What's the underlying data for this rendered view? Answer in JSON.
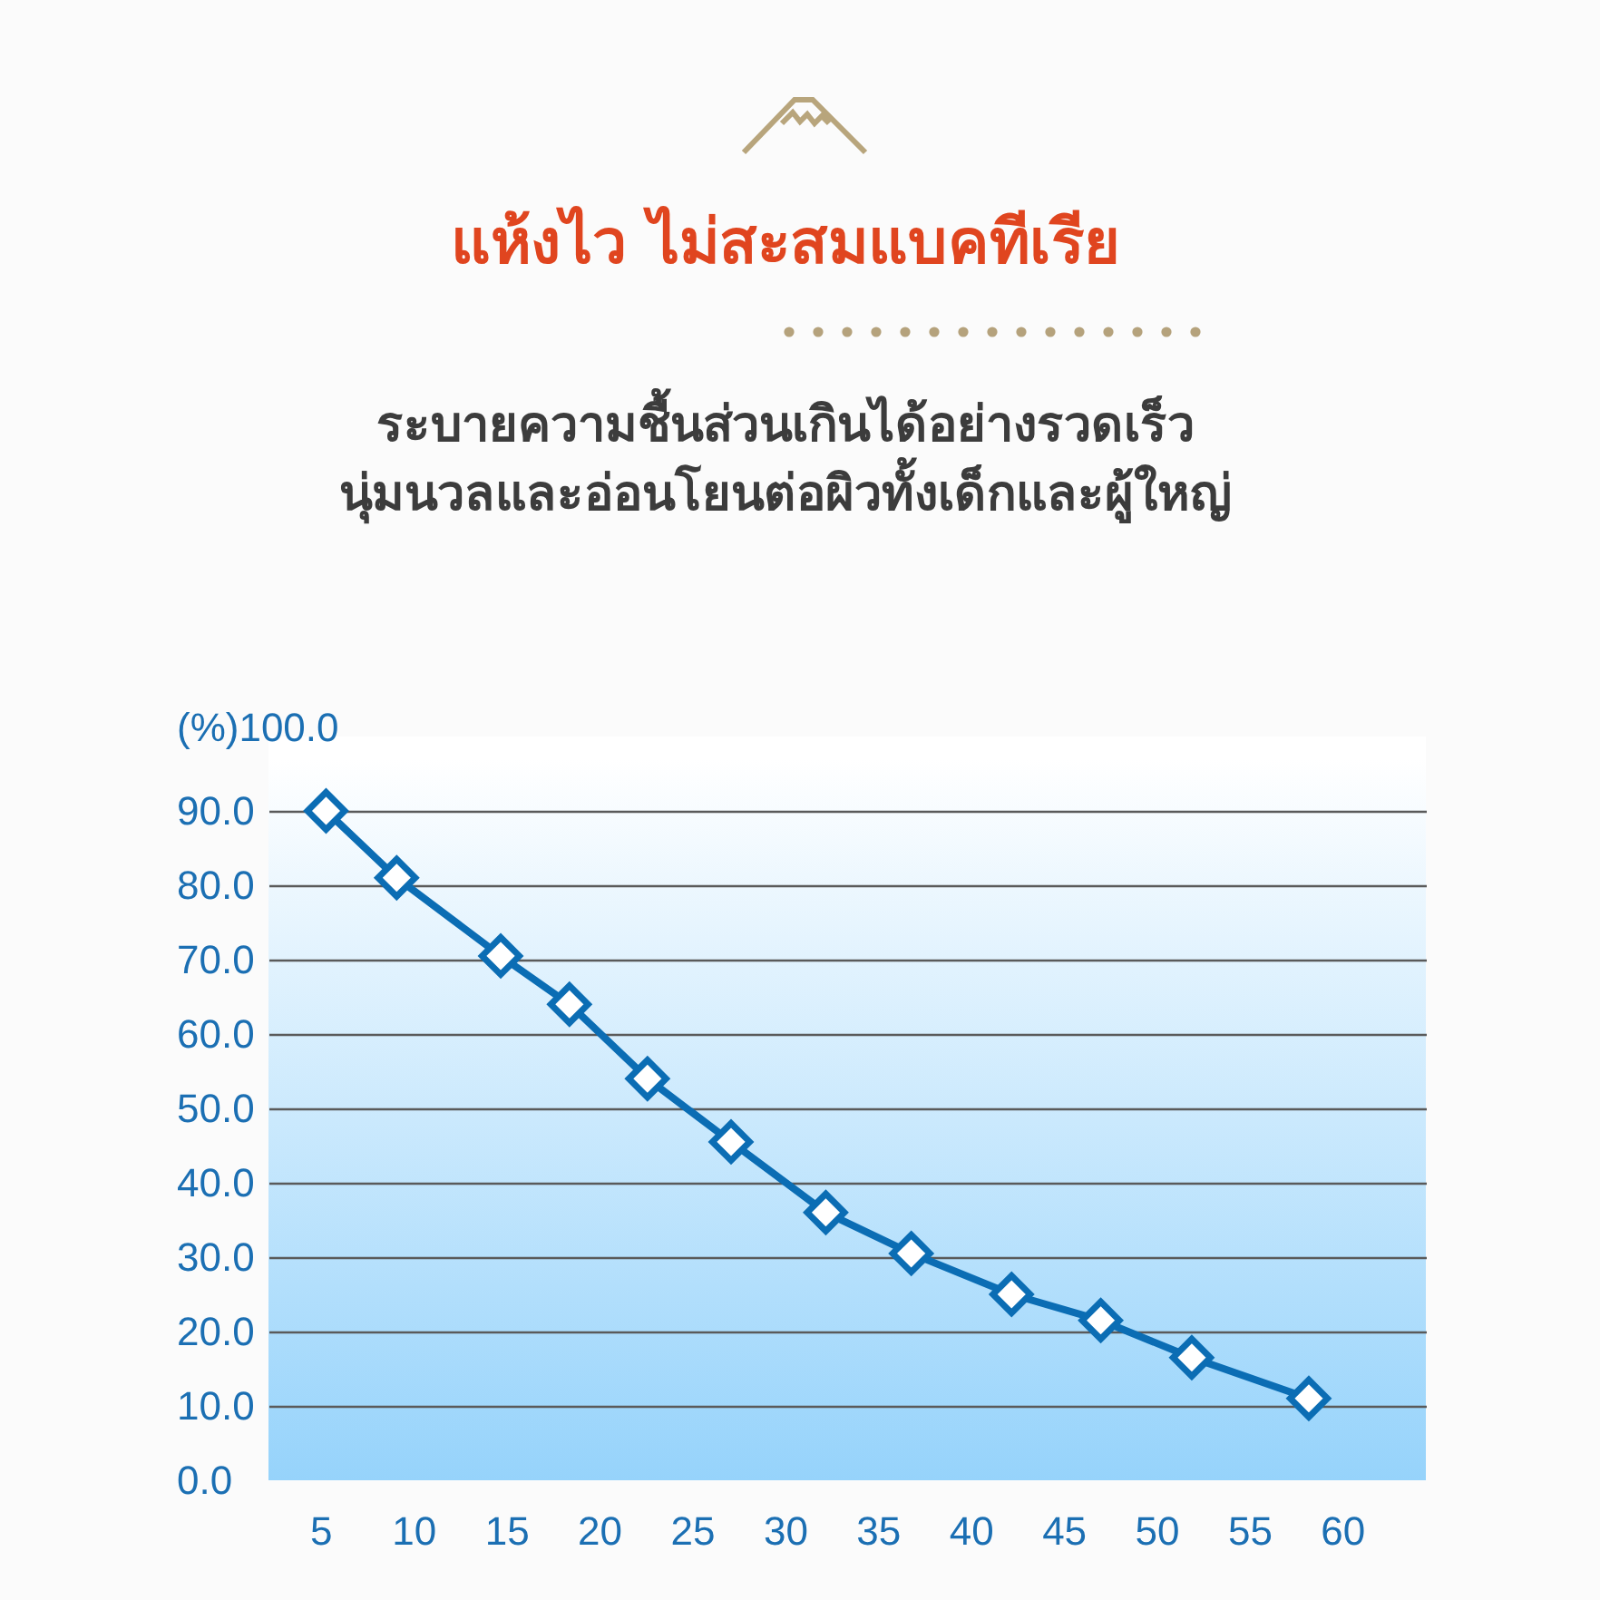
{
  "chart_data": {
    "type": "line",
    "title": "แห้งไว ไม่สะสมแบคทีเรีย",
    "subtitle": "ระบายความชื้นส่วนเกินได้อย่างรวดเร็ว\nนุ่มนวลและอ่อนโยนต่อผิวทั้งเด็กและผู้ใหญ่",
    "x": [
      5.3,
      9.1,
      14.7,
      18.4,
      22.6,
      27.1,
      32.2,
      36.8,
      42.2,
      47.0,
      51.9,
      58.2
    ],
    "values": [
      90,
      81,
      70.5,
      64,
      54,
      45.5,
      36,
      30.5,
      25,
      21.5,
      16.5,
      11
    ],
    "color": "#0b6db4",
    "xlim": [
      2.2,
      64.5
    ],
    "xticks": [
      5,
      10,
      15,
      20,
      25,
      30,
      35,
      40,
      45,
      50,
      55,
      60
    ],
    "ylim": [
      0,
      100
    ],
    "yticks": [
      {
        "value": 0,
        "label": "0.0"
      },
      {
        "value": 10,
        "label": "10.0"
      },
      {
        "value": 20,
        "label": "20.0"
      },
      {
        "value": 30,
        "label": "30.0"
      },
      {
        "value": 40,
        "label": "40.0"
      },
      {
        "value": 50,
        "label": "50.0"
      },
      {
        "value": 60,
        "label": "60.0"
      },
      {
        "value": 70,
        "label": "70.0"
      },
      {
        "value": 80,
        "label": "80.0"
      },
      {
        "value": 90,
        "label": "90.0"
      },
      {
        "value": 100,
        "label": "(%)100.0"
      }
    ],
    "grid": "y",
    "marker": "diamond",
    "line_style": "solid"
  }
}
